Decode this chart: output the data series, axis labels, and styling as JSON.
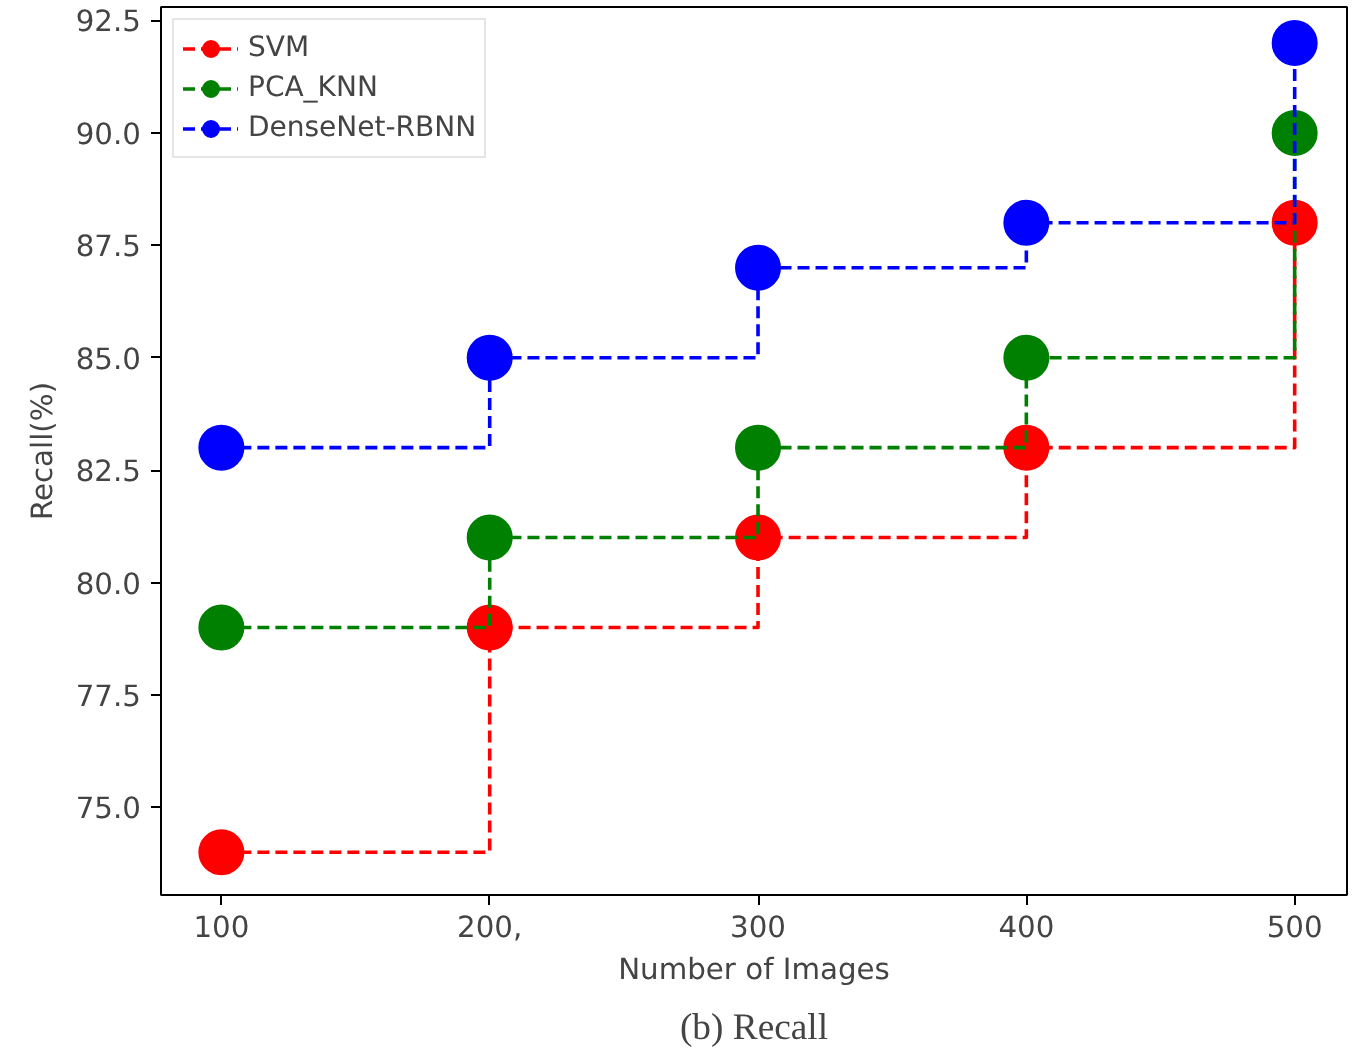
{
  "chart_data": {
    "type": "step",
    "xlabel": "Number of Images",
    "ylabel": "Recall(%)",
    "annotations": [
      "(b) Recall"
    ],
    "x": [
      100,
      200,
      300,
      400,
      500
    ],
    "xlim": [
      77.5,
      519.5
    ],
    "xticks": [
      100,
      {
        "value": 200,
        "label": "200,"
      },
      300,
      400,
      500
    ],
    "ylim": [
      73.05,
      92.8
    ],
    "yticks": [
      {
        "value": 75,
        "label": "75.0"
      },
      {
        "value": 77.5,
        "label": "77.5"
      },
      {
        "value": 80,
        "label": "80.0"
      },
      {
        "value": 82.5,
        "label": "82.5"
      },
      {
        "value": 85,
        "label": "85.0"
      },
      {
        "value": 87.5,
        "label": "87.5"
      },
      {
        "value": 90,
        "label": "90.0"
      },
      {
        "value": 92.5,
        "label": "92.5"
      }
    ],
    "series": [
      {
        "name": "SVM",
        "color": "#ff0000",
        "values": [
          74,
          79,
          81,
          83,
          88
        ]
      },
      {
        "name": "PCA_KNN",
        "color": "#008000",
        "values": [
          79,
          81,
          83,
          85,
          90
        ]
      },
      {
        "name": "DenseNet-RBNN",
        "color": "#0000ff",
        "values": [
          83,
          85,
          87,
          88,
          92
        ]
      }
    ],
    "marker": "circle",
    "line_style": "dashed",
    "legend": "top left",
    "grid": false
  }
}
